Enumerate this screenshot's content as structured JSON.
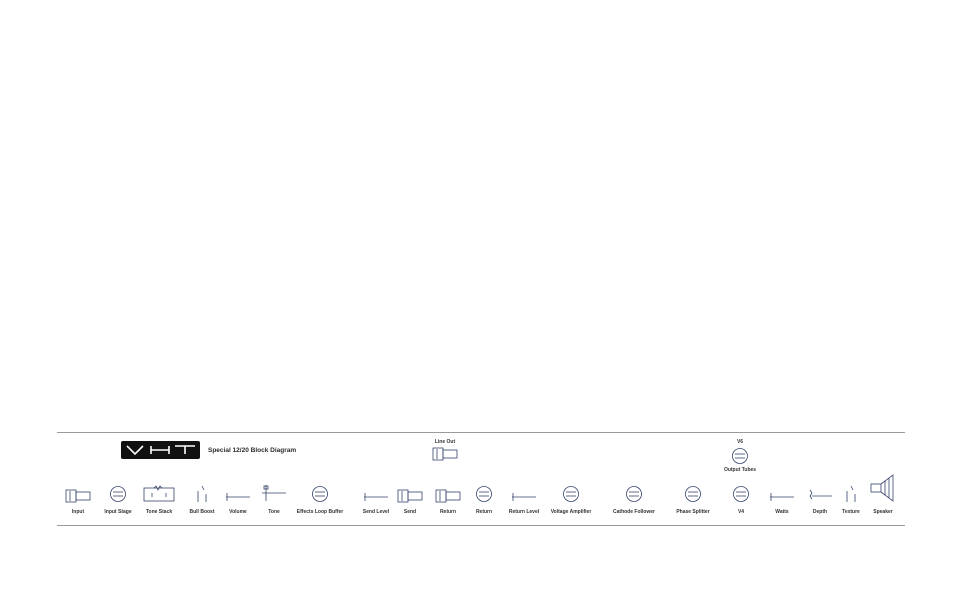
{
  "diagram": {
    "title": "Special 12/20 Block Diagram",
    "logo_text": "VHT",
    "accent_color": "#34436a",
    "line_out": {
      "label": "Line Out",
      "icon": "jack-icon"
    },
    "v6": {
      "label": "V6",
      "icon": "tube-icon",
      "caption": "Output Tubes"
    },
    "components": [
      {
        "label": "Input",
        "icon": "jack-icon"
      },
      {
        "label": "Input Stage",
        "icon": "tube-icon"
      },
      {
        "label": "Tone Stack",
        "icon": "tone-stack-icon"
      },
      {
        "label": "Bull Boost",
        "icon": "switch-icon"
      },
      {
        "label": "Volume",
        "icon": "potentiometer-icon"
      },
      {
        "label": "Tone",
        "icon": "tone-pot-icon"
      },
      {
        "label": "Effects Loop Buffer",
        "icon": "tube-icon"
      },
      {
        "label": "Send Level",
        "icon": "potentiometer-icon"
      },
      {
        "label": "Send",
        "icon": "jack-icon"
      },
      {
        "label": "Return",
        "icon": "jack-icon"
      },
      {
        "label": "Return",
        "icon": "tube-icon"
      },
      {
        "label": "Return Level",
        "icon": "potentiometer-icon"
      },
      {
        "label": "Voltage Amplifier",
        "icon": "tube-icon"
      },
      {
        "label": "Cathode Follower",
        "icon": "tube-icon"
      },
      {
        "label": "Phase Splitter",
        "icon": "tube-icon"
      },
      {
        "label": "V4",
        "icon": "tube-icon"
      },
      {
        "label": "Watts",
        "icon": "potentiometer-icon"
      },
      {
        "label": "Depth",
        "icon": "depth-pot-icon"
      },
      {
        "label": "Texture",
        "icon": "switch-icon"
      },
      {
        "label": "Speaker",
        "icon": "speaker-icon"
      }
    ]
  }
}
